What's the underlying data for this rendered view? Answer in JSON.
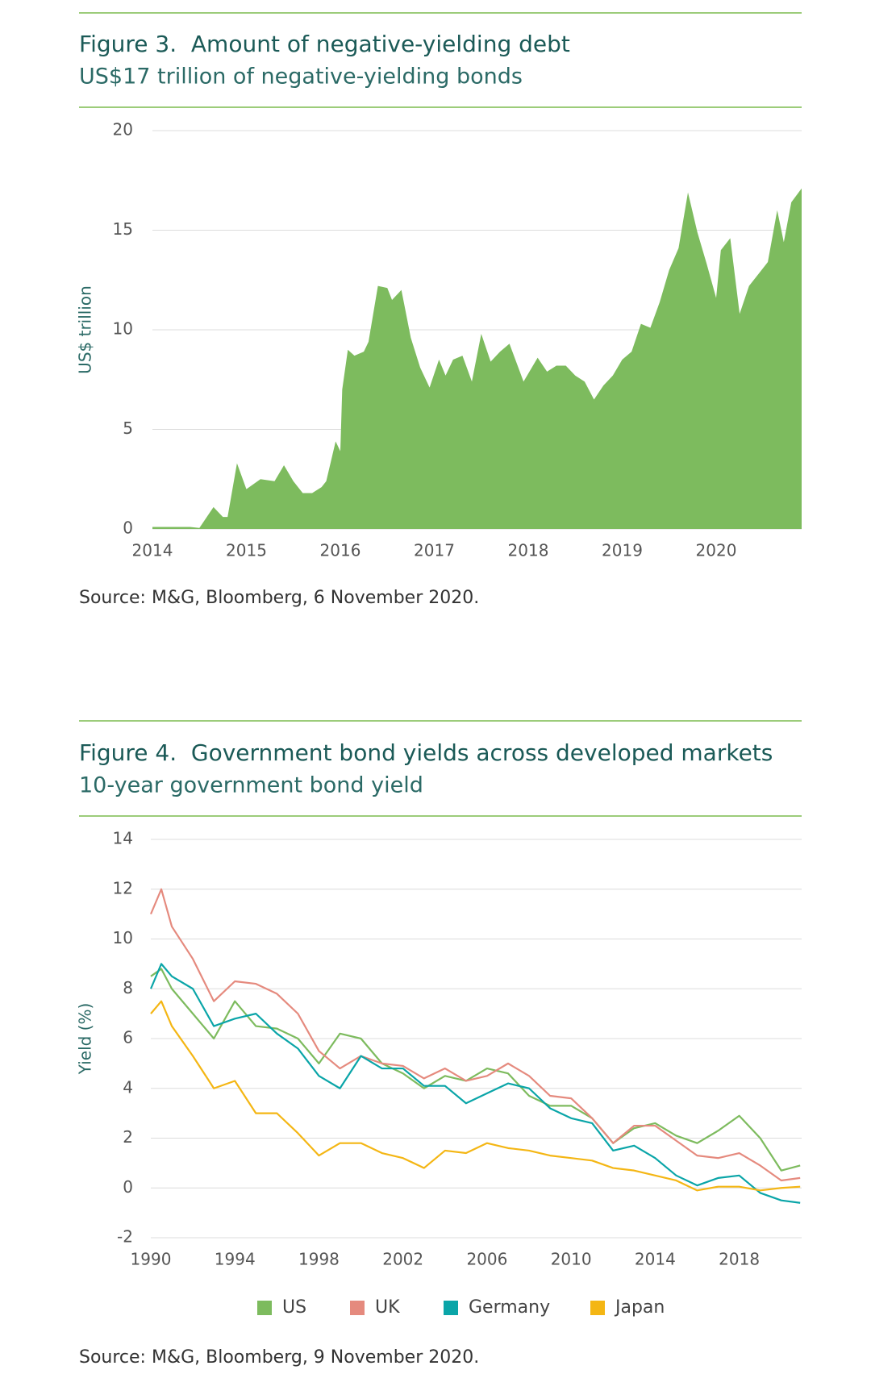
{
  "chart_data": [
    {
      "type": "area",
      "title": "Figure 3.  Amount of negative-yielding debt",
      "subtitle": "US$17 trillion of negative-yielding bonds",
      "y_label": "US$ trillion",
      "source": "Source: M&G, Bloomberg, 6 November 2020.",
      "color": "#7dbb5e",
      "grid": true,
      "x": [
        2014.0,
        2014.4,
        2014.5,
        2014.65,
        2014.75,
        2014.8,
        2014.9,
        2015.0,
        2015.15,
        2015.3,
        2015.4,
        2015.5,
        2015.6,
        2015.7,
        2015.8,
        2015.85,
        2015.95,
        2016.0,
        2016.02,
        2016.08,
        2016.15,
        2016.25,
        2016.3,
        2016.4,
        2016.5,
        2016.55,
        2016.65,
        2016.75,
        2016.85,
        2016.95,
        2017.05,
        2017.12,
        2017.2,
        2017.3,
        2017.4,
        2017.5,
        2017.6,
        2017.7,
        2017.8,
        2017.95,
        2018.1,
        2018.2,
        2018.3,
        2018.4,
        2018.5,
        2018.6,
        2018.7,
        2018.8,
        2018.9,
        2019.0,
        2019.1,
        2019.2,
        2019.3,
        2019.4,
        2019.5,
        2019.6,
        2019.7,
        2019.8,
        2019.9,
        2020.0,
        2020.05,
        2020.15,
        2020.25,
        2020.35,
        2020.45,
        2020.55,
        2020.65,
        2020.72,
        2020.8,
        2020.91
      ],
      "values": [
        0.1,
        0.1,
        0.05,
        1.1,
        0.6,
        0.6,
        3.3,
        2.0,
        2.5,
        2.4,
        3.2,
        2.4,
        1.8,
        1.8,
        2.1,
        2.4,
        4.4,
        3.9,
        7.0,
        9.0,
        8.7,
        8.9,
        9.4,
        12.2,
        12.1,
        11.5,
        12.0,
        9.6,
        8.1,
        7.1,
        8.5,
        7.7,
        8.5,
        8.7,
        7.4,
        9.8,
        8.4,
        8.9,
        9.3,
        7.4,
        8.6,
        7.9,
        8.2,
        8.2,
        7.7,
        7.4,
        6.5,
        7.2,
        7.7,
        8.5,
        8.9,
        10.3,
        10.1,
        11.4,
        13.0,
        14.1,
        16.9,
        14.9,
        13.3,
        11.6,
        14.0,
        14.6,
        10.8,
        12.2,
        12.8,
        13.4,
        16.0,
        14.4,
        16.4,
        17.1
      ],
      "xlim": [
        2014,
        2020.91
      ],
      "xticks": [
        2014,
        2015,
        2016,
        2017,
        2018,
        2019,
        2020
      ],
      "ylim": [
        0,
        20
      ],
      "yticks": [
        0,
        5,
        10,
        15,
        20
      ]
    },
    {
      "type": "line",
      "title": "Figure 4.  Government bond yields across developed markets",
      "subtitle": "10-year government bond yield",
      "y_label": "Yield (%)",
      "source": "Source: M&G, Bloomberg, 9 November 2020.",
      "grid": true,
      "legend": "bottom",
      "x": [
        1990,
        1990.5,
        1991,
        1992,
        1993,
        1994,
        1995,
        1996,
        1997,
        1998,
        1999,
        2000,
        2001,
        2002,
        2003,
        2004,
        2005,
        2006,
        2007,
        2008,
        2009,
        2010,
        2011,
        2012,
        2013,
        2014,
        2015,
        2016,
        2017,
        2018,
        2019,
        2020,
        2020.9
      ],
      "series": [
        {
          "name": "US",
          "color": "#7dbb5e",
          "values": [
            8.5,
            8.8,
            8.0,
            7.0,
            6.0,
            7.5,
            6.5,
            6.4,
            6.0,
            5.0,
            6.2,
            6.0,
            5.0,
            4.6,
            4.0,
            4.5,
            4.3,
            4.8,
            4.6,
            3.7,
            3.3,
            3.3,
            2.8,
            1.8,
            2.4,
            2.6,
            2.1,
            1.8,
            2.3,
            2.9,
            2.0,
            0.7,
            0.9
          ]
        },
        {
          "name": "UK",
          "color": "#e58a7e",
          "values": [
            11.0,
            12.0,
            10.5,
            9.2,
            7.5,
            8.3,
            8.2,
            7.8,
            7.0,
            5.5,
            4.8,
            5.3,
            5.0,
            4.9,
            4.4,
            4.8,
            4.3,
            4.5,
            5.0,
            4.5,
            3.7,
            3.6,
            2.8,
            1.8,
            2.5,
            2.5,
            1.9,
            1.3,
            1.2,
            1.4,
            0.9,
            0.3,
            0.4
          ]
        },
        {
          "name": "Germany",
          "color": "#0aa5a8",
          "values": [
            8.0,
            9.0,
            8.5,
            8.0,
            6.5,
            6.8,
            7.0,
            6.2,
            5.6,
            4.5,
            4.0,
            5.3,
            4.8,
            4.8,
            4.1,
            4.1,
            3.4,
            3.8,
            4.2,
            4.0,
            3.2,
            2.8,
            2.6,
            1.5,
            1.7,
            1.2,
            0.5,
            0.1,
            0.4,
            0.5,
            -0.2,
            -0.5,
            -0.6
          ]
        },
        {
          "name": "Japan",
          "color": "#f4b614",
          "values": [
            7.0,
            7.5,
            6.5,
            5.3,
            4.0,
            4.3,
            3.0,
            3.0,
            2.2,
            1.3,
            1.8,
            1.8,
            1.4,
            1.2,
            0.8,
            1.5,
            1.4,
            1.8,
            1.6,
            1.5,
            1.3,
            1.2,
            1.1,
            0.8,
            0.7,
            0.5,
            0.3,
            -0.1,
            0.05,
            0.05,
            -0.1,
            0.0,
            0.05
          ]
        }
      ],
      "xlim": [
        1990,
        2020.97
      ],
      "xticks": [
        1990,
        1994,
        1998,
        2002,
        2006,
        2010,
        2014,
        2018
      ],
      "ylim": [
        -2,
        14
      ],
      "yticks": [
        -2,
        0,
        2,
        4,
        6,
        8,
        10,
        12,
        14
      ]
    }
  ]
}
